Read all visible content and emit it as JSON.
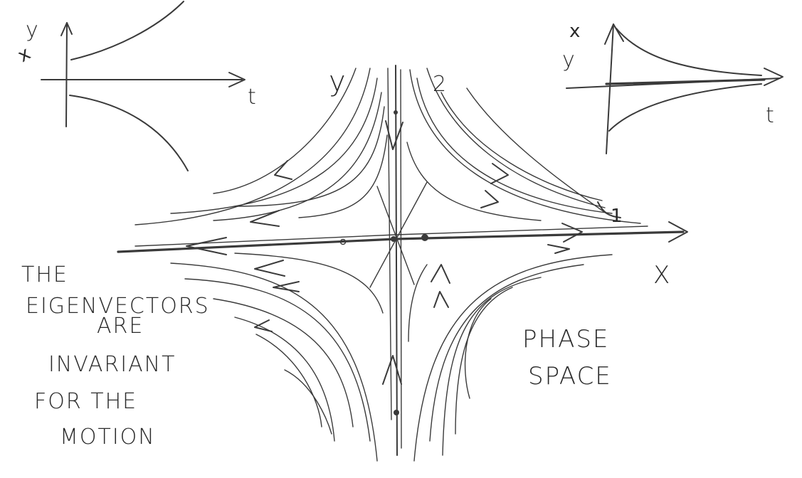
{
  "labels": {
    "left_graph_x": "x",
    "left_graph_y": "y",
    "left_graph_t": "t",
    "right_graph_x": "x",
    "right_graph_y": "y",
    "right_graph_t": "t",
    "phase_y": "y",
    "phase_y_sub": "2",
    "phase_x": "x",
    "phase_x_sub": "1",
    "phase_x_axis": "X"
  },
  "note": {
    "lines": [
      "THE",
      "EIGENVECTORS",
      "ARE",
      "INVARIANT",
      "FOR THE",
      "MOTION"
    ]
  },
  "caption": {
    "lines": [
      "PHASE",
      "SPACE"
    ]
  },
  "colors": {
    "ink": "#3a3a3a",
    "background": "#ffffff"
  }
}
